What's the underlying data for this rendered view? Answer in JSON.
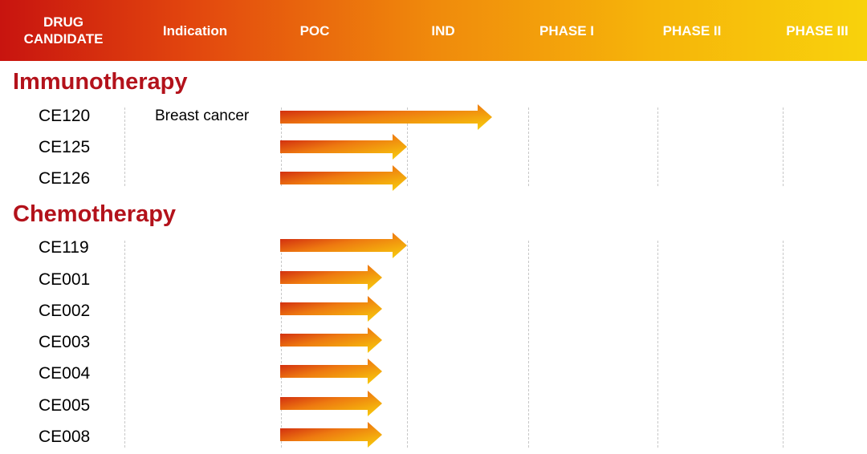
{
  "header": {
    "columns": [
      {
        "id": "drug-candidate",
        "label_line1": "DRUG",
        "label_line2": "CANDIDATE"
      },
      {
        "id": "indication",
        "label": "Indication"
      },
      {
        "id": "poc",
        "label": "POC"
      },
      {
        "id": "ind",
        "label": "IND"
      },
      {
        "id": "phase-1",
        "label": "PHASE I"
      },
      {
        "id": "phase-2",
        "label": "PHASE II"
      },
      {
        "id": "phase-3",
        "label": "PHASE III"
      }
    ]
  },
  "colors": {
    "header_start": "#c8140f",
    "header_end": "#f8d20c",
    "section_title": "#b3121b",
    "arrow_start": "#c8140f",
    "arrow_end": "#f8d20c"
  },
  "sections": [
    {
      "title": "Immunotherapy",
      "rows": [
        {
          "name": "CE120",
          "indication": "Breast cancer",
          "stage": "IND"
        },
        {
          "name": "CE125",
          "indication": "",
          "stage": "POC"
        },
        {
          "name": "CE126",
          "indication": "",
          "stage": "POC"
        }
      ]
    },
    {
      "title": "Chemotherapy",
      "rows": [
        {
          "name": "CE119",
          "indication": "",
          "stage": "POC"
        },
        {
          "name": "CE001",
          "indication": "",
          "stage": "POC-partial"
        },
        {
          "name": "CE002",
          "indication": "",
          "stage": "POC-partial"
        },
        {
          "name": "CE003",
          "indication": "",
          "stage": "POC-partial"
        },
        {
          "name": "CE004",
          "indication": "",
          "stage": "POC-partial"
        },
        {
          "name": "CE005",
          "indication": "",
          "stage": "POC-partial"
        },
        {
          "name": "CE008",
          "indication": "",
          "stage": "POC-partial"
        }
      ]
    }
  ]
}
